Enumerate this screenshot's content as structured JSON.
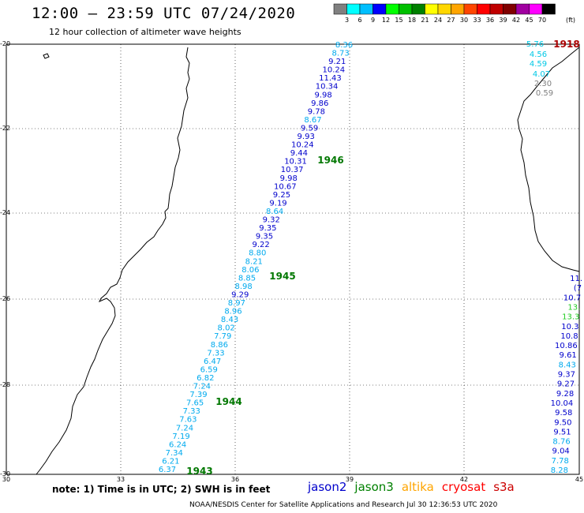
{
  "header": {
    "title": "12:00 – 23:59 UTC 07/24/2020",
    "subtitle": "12 hour collection of altimeter wave heights"
  },
  "legend": {
    "unit": "(ft)",
    "levels": [
      "3",
      "6",
      "9",
      "12",
      "15",
      "18",
      "21",
      "24",
      "27",
      "30",
      "33",
      "36",
      "39",
      "42",
      "45",
      "70"
    ],
    "colors": [
      "#808080",
      "#00ffff",
      "#00bfff",
      "#0000ff",
      "#00ff00",
      "#00c000",
      "#008000",
      "#ffff00",
      "#ffd700",
      "#ffa500",
      "#ff4500",
      "#ff0000",
      "#c00000",
      "#800000",
      "#a000a0",
      "#ff00ff",
      "#000000"
    ]
  },
  "axes": {
    "x_ticks": [
      "30",
      "33",
      "36",
      "39",
      "42",
      "45"
    ],
    "y_ticks": [
      "-20",
      "-22",
      "-24",
      "-26",
      "-28",
      "-30"
    ],
    "grid": "dotted"
  },
  "track_times": [
    "1946",
    "1945",
    "1944",
    "1943",
    "1918"
  ],
  "jason3_track": [
    "8.36",
    "8.73",
    "9.21",
    "10.24",
    "11.43",
    "10.34",
    "9.98",
    "9.86",
    "9.78",
    "8.67",
    "9.59",
    "9.93",
    "10.24",
    "9.44",
    "10.31",
    "10.37",
    "9.98",
    "10.67",
    "9.25",
    "9.19",
    "8.64",
    "9.32",
    "9.35",
    "9.35",
    "9.22",
    "8.80",
    "8.21",
    "8.06",
    "8.85",
    "8.98",
    "9.29",
    "8.97",
    "8.96",
    "8.43",
    "8.02",
    "7.79",
    "8.86",
    "7.33",
    "6.47",
    "6.59",
    "6.82",
    "7.24",
    "7.39",
    "7.65",
    "7.33",
    "7.63",
    "7.24",
    "7.19",
    "6.24",
    "7.34",
    "6.21",
    "6.37"
  ],
  "east_track_top": [
    "5.76",
    "4.56",
    "4.59",
    "4.07",
    "2.30",
    "0.59"
  ],
  "east_track_bottom": [
    "11.",
    "(7",
    "10.7",
    "13.",
    "13.3",
    "10.3",
    "10.8",
    "10.86",
    "9.61",
    "8.43",
    "9.37",
    "9.27",
    "9.28",
    "10.04",
    "9.58",
    "9.50",
    "9.51",
    "8.76",
    "9.04",
    "7.78",
    "8.28"
  ],
  "note": "note: 1) Time is in UTC; 2) SWH is in feet",
  "satellites": [
    {
      "name": "jason2",
      "color": "#0000cc"
    },
    {
      "name": "jason3",
      "color": "#008000"
    },
    {
      "name": "altika",
      "color": "#ffa500"
    },
    {
      "name": "cryosat",
      "color": "#ff0000"
    },
    {
      "name": "s3a",
      "color": "#cc0000"
    }
  ],
  "credit": "NOAA/NESDIS Center for Satellite Applications and Research    Jul 30 12:36:53 UTC 2020"
}
